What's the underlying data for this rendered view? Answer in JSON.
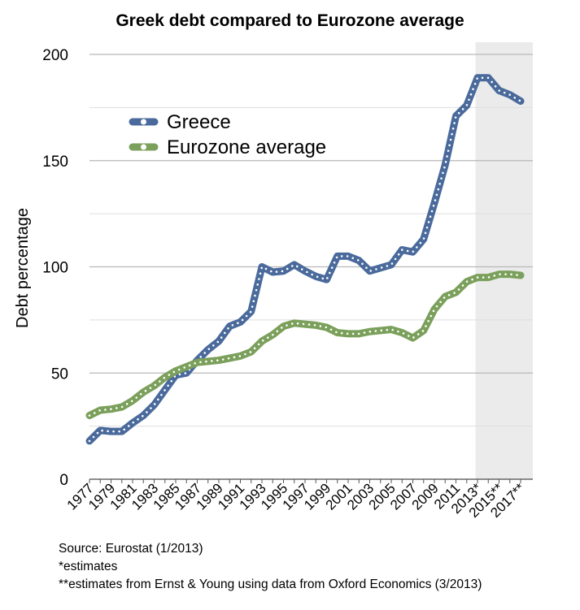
{
  "chart_data": {
    "type": "line",
    "title": "Greek debt compared to Eurozone average",
    "ylabel": "Debt percentage",
    "ylim": [
      0,
      200
    ],
    "yticks": [
      "0",
      "50",
      "100",
      "150",
      "200"
    ],
    "x": [
      1977,
      1978,
      1979,
      1980,
      1981,
      1982,
      1983,
      1984,
      1985,
      1986,
      1987,
      1988,
      1989,
      1990,
      1991,
      1992,
      1993,
      1994,
      1995,
      1996,
      1997,
      1998,
      1999,
      2000,
      2001,
      2002,
      2003,
      2004,
      2005,
      2006,
      2007,
      2008,
      2009,
      2010,
      2011,
      2012,
      2013,
      2014,
      2015,
      2016,
      2017
    ],
    "xtick_labels": [
      "1977",
      "1979",
      "1981",
      "1983",
      "1985",
      "1987",
      "1989",
      "1991",
      "1993",
      "1995",
      "1997",
      "1999",
      "2001",
      "2003",
      "2005",
      "2007",
      "2009",
      "2011",
      "2013*",
      "2015**",
      "2017**"
    ],
    "estimate_shading_from": 2013,
    "grid": true,
    "legend_position": "top-left",
    "series": [
      {
        "name": "Greece",
        "color": "#4a6a9c",
        "values": [
          18,
          23,
          22.5,
          22.5,
          26.5,
          30,
          35,
          42,
          49,
          50,
          56,
          61,
          65,
          72,
          74,
          79,
          100,
          97.5,
          98,
          101,
          98,
          95.5,
          94,
          105,
          105,
          103,
          98,
          99.5,
          101,
          108,
          107,
          113,
          130,
          148,
          171,
          176,
          189,
          189,
          183,
          181,
          178
        ]
      },
      {
        "name": "Eurozone average",
        "color": "#7ba05b",
        "values": [
          30,
          32.5,
          33,
          34,
          37,
          41,
          44,
          48,
          51,
          53,
          55,
          55.5,
          56,
          57,
          58,
          60,
          65,
          68,
          72,
          73.5,
          73,
          72.5,
          71.5,
          69,
          68.5,
          68.5,
          69.5,
          70,
          70.5,
          69,
          66.5,
          70,
          80,
          86,
          88,
          93,
          95,
          95,
          96.5,
          96.5,
          96
        ]
      }
    ]
  },
  "notes": {
    "source": "Source: Eurostat (1/2013)",
    "estimates": "*estimates",
    "estimates_ey": "**estimates from Ernst & Young using data from Oxford Economics (3/2013)"
  }
}
